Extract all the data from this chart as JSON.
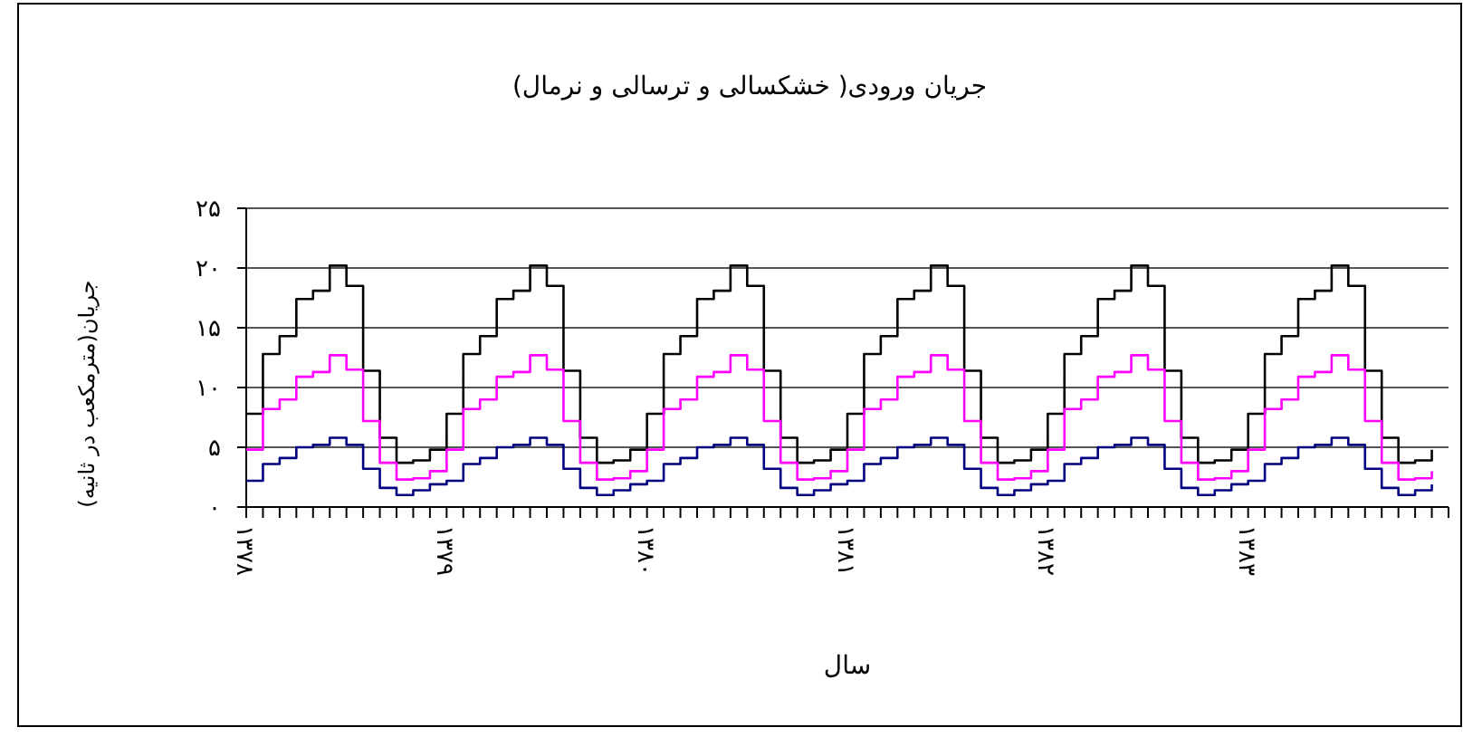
{
  "chart_data": {
    "type": "step",
    "title": "جریان ورودی( خشکسالی و ترسالی و نرمال)",
    "xlabel": "سال",
    "ylabel": "جریان(مترمکعب در ثانیه)",
    "categories": [
      "۱۳۷۸",
      null,
      null,
      null,
      null,
      null,
      null,
      null,
      null,
      null,
      null,
      null,
      "۱۳۷۹",
      null,
      null,
      null,
      null,
      null,
      null,
      null,
      null,
      null,
      null,
      null,
      "۱۳۸۰",
      null,
      null,
      null,
      null,
      null,
      null,
      null,
      null,
      null,
      null,
      null,
      "۱۳۸۱",
      null,
      null,
      null,
      null,
      null,
      null,
      null,
      null,
      null,
      null,
      null,
      "۱۳۸۲",
      null,
      null,
      null,
      null,
      null,
      null,
      null,
      null,
      null,
      null,
      null,
      "۱۳۸۳",
      null,
      null,
      null,
      null,
      null,
      null,
      null,
      null,
      null,
      null,
      null
    ],
    "series": [
      {
        "color": "#000000",
        "values": [
          7.8,
          12.8,
          14.3,
          17.4,
          18.1,
          20.2,
          18.5,
          11.4,
          5.8,
          3.7,
          3.9,
          4.8,
          7.8,
          12.8,
          14.3,
          17.4,
          18.1,
          20.2,
          18.5,
          11.4,
          5.8,
          3.7,
          3.9,
          4.8,
          7.8,
          12.8,
          14.3,
          17.4,
          18.1,
          20.2,
          18.5,
          11.4,
          5.8,
          3.7,
          3.9,
          4.8,
          7.8,
          12.8,
          14.3,
          17.4,
          18.1,
          20.2,
          18.5,
          11.4,
          5.8,
          3.7,
          3.9,
          4.8,
          7.8,
          12.8,
          14.3,
          17.4,
          18.1,
          20.2,
          18.5,
          11.4,
          5.8,
          3.7,
          3.9,
          4.8,
          7.8,
          12.8,
          14.3,
          17.4,
          18.1,
          20.2,
          18.5,
          11.4,
          5.8,
          3.7,
          3.9,
          4.8
        ]
      },
      {
        "color": "#ff00ff",
        "values": [
          4.8,
          8.2,
          9.0,
          10.9,
          11.3,
          12.7,
          11.5,
          7.2,
          3.7,
          2.3,
          2.4,
          3.0,
          4.8,
          8.2,
          9.0,
          10.9,
          11.3,
          12.7,
          11.5,
          7.2,
          3.7,
          2.3,
          2.4,
          3.0,
          4.8,
          8.2,
          9.0,
          10.9,
          11.3,
          12.7,
          11.5,
          7.2,
          3.7,
          2.3,
          2.4,
          3.0,
          4.8,
          8.2,
          9.0,
          10.9,
          11.3,
          12.7,
          11.5,
          7.2,
          3.7,
          2.3,
          2.4,
          3.0,
          4.8,
          8.2,
          9.0,
          10.9,
          11.3,
          12.7,
          11.5,
          7.2,
          3.7,
          2.3,
          2.4,
          3.0,
          4.8,
          8.2,
          9.0,
          10.9,
          11.3,
          12.7,
          11.5,
          7.2,
          3.7,
          2.3,
          2.4,
          3.0
        ]
      },
      {
        "color": "#000080",
        "values": [
          2.2,
          3.6,
          4.1,
          5.0,
          5.2,
          5.8,
          5.2,
          3.2,
          1.6,
          1.0,
          1.4,
          1.9,
          2.2,
          3.6,
          4.1,
          5.0,
          5.2,
          5.8,
          5.2,
          3.2,
          1.6,
          1.0,
          1.4,
          1.9,
          2.2,
          3.6,
          4.1,
          5.0,
          5.2,
          5.8,
          5.2,
          3.2,
          1.6,
          1.0,
          1.4,
          1.9,
          2.2,
          3.6,
          4.1,
          5.0,
          5.2,
          5.8,
          5.2,
          3.2,
          1.6,
          1.0,
          1.4,
          1.9,
          2.2,
          3.6,
          4.1,
          5.0,
          5.2,
          5.8,
          5.2,
          3.2,
          1.6,
          1.0,
          1.4,
          1.9,
          2.2,
          3.6,
          4.1,
          5.0,
          5.2,
          5.8,
          5.2,
          3.2,
          1.6,
          1.0,
          1.4,
          1.9
        ]
      }
    ],
    "ylim": [
      0,
      25
    ],
    "yticks": [
      {
        "value": 0,
        "label": "۰"
      },
      {
        "value": 5,
        "label": "۵"
      },
      {
        "value": 10,
        "label": "۱۰"
      },
      {
        "value": 15,
        "label": "۱۵"
      },
      {
        "value": 20,
        "label": "۲۰"
      },
      {
        "value": 25,
        "label": "۲۵"
      }
    ],
    "grid": "y",
    "marker": "none",
    "line_style": "solid"
  }
}
